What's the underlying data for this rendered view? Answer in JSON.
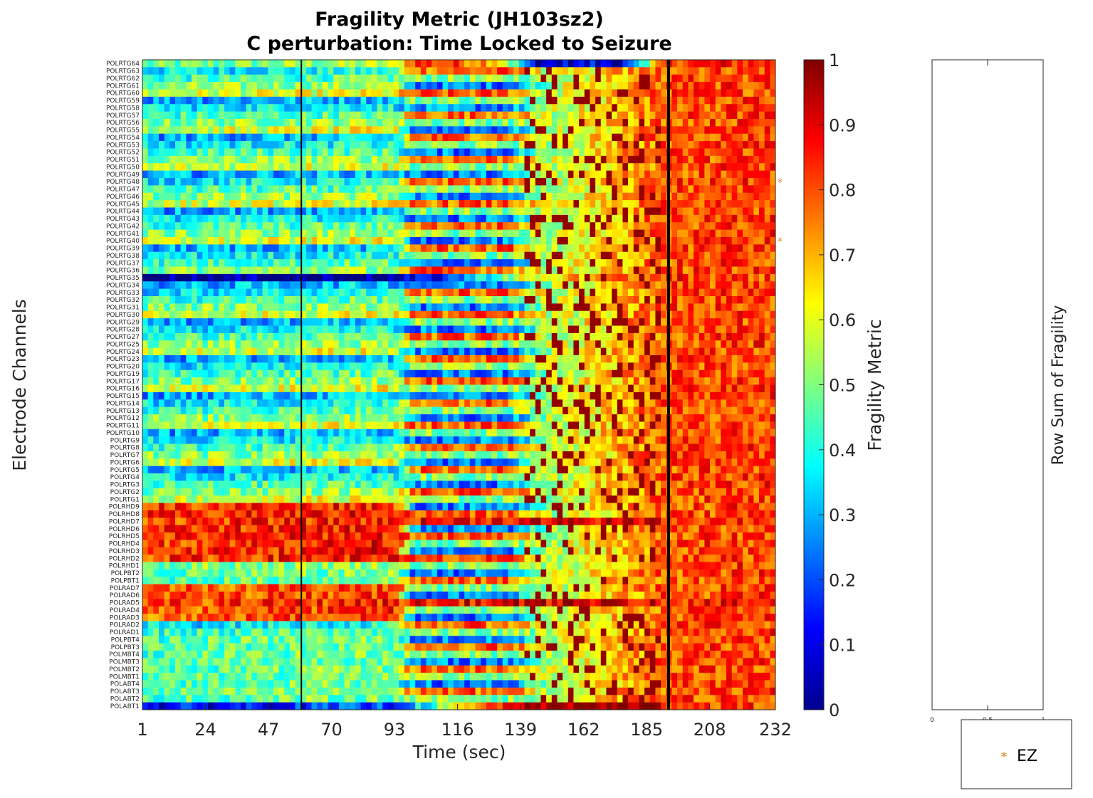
{
  "chart_data": [
    {
      "type": "heatmap",
      "title": "Fragility Metric (JH103sz2)",
      "subtitle": "C perturbation:  Time Locked to Seizure",
      "xlabel": "Time (sec)",
      "ylabel": "Electrode Channels",
      "x_ticks": [
        "1",
        "24",
        "47",
        "70",
        "93",
        "116",
        "139",
        "162",
        "185",
        "208",
        "232"
      ],
      "xlim": [
        1,
        232
      ],
      "channels": [
        "POLRTG64",
        "POLRTG63",
        "POLRTG62",
        "POLRTG61",
        "POLRTG60",
        "POLRTG59",
        "POLRTG58",
        "POLRTG57",
        "POLRTG56",
        "POLRTG55",
        "POLRTG54",
        "POLRTG53",
        "POLRTG52",
        "POLRTG51",
        "POLRTG50",
        "POLRTG49",
        "POLRTG48",
        "POLRTG47",
        "POLRTG46",
        "POLRTG45",
        "POLRTG44",
        "POLRTG43",
        "POLRTG42",
        "POLRTG41",
        "POLRTG40",
        "POLRTG39",
        "POLRTG38",
        "POLRTG37",
        "POLRTG36",
        "POLRTG35",
        "POLRTG34",
        "POLRTG33",
        "POLRTG32",
        "POLRTG31",
        "POLRTG30",
        "POLRTG29",
        "POLRTG28",
        "POLRTG27",
        "POLRTG25",
        "POLRTG24",
        "POLRTG23",
        "POLRTG20",
        "POLRTG19",
        "POLRTG17",
        "POLRTG16",
        "POLRTG15",
        "POLRTG14",
        "POLRTG13",
        "POLRTG12",
        "POLRTG11",
        "POLRTG10",
        "POLRTG9",
        "POLRTG8",
        "POLRTG7",
        "POLRTG6",
        "POLRTG5",
        "POLRTG4",
        "POLRTG3",
        "POLRTG2",
        "POLRTG1",
        "POLRHD9",
        "POLRHD8",
        "POLRHD7",
        "POLRHD6",
        "POLRHD5",
        "POLRHD4",
        "POLRHD3",
        "POLRHD2",
        "POLRHD1",
        "POLPBT2",
        "POLPBT1",
        "POLRAD7",
        "POLRAD6",
        "POLRAD5",
        "POLRAD4",
        "POLRAD3",
        "POLRAD2",
        "POLRAD1",
        "POLPBT4",
        "POLPBT3",
        "POLMBT4",
        "POLMBT3",
        "POLMBT2",
        "POLMBT1",
        "POLABT4",
        "POLABT3",
        "POLABT2",
        "POLABT1"
      ],
      "ez_channels": [
        "POLRTG48",
        "POLRTG40"
      ],
      "ez_color": "#d98a1a",
      "vertical_markers_sec": [
        59,
        193
      ],
      "colorbar": {
        "label": "Fragility Metric",
        "range": [
          0,
          1
        ],
        "ticks": [
          "0",
          "0.1",
          "0.2",
          "0.3",
          "0.4",
          "0.5",
          "0.6",
          "0.7",
          "0.8",
          "0.9",
          "1"
        ],
        "colormap": "jet"
      },
      "row_profiles": {
        "POLRTG64": [
          [
            1,
            0.45
          ],
          [
            93,
            0.55
          ],
          [
            100,
            0.85
          ],
          [
            130,
            0.75
          ],
          [
            145,
            0.08
          ],
          [
            175,
            0.1
          ],
          [
            193,
            0.85
          ],
          [
            232,
            0.85
          ]
        ],
        "POLRTG35": [
          [
            1,
            0.02
          ],
          [
            93,
            0.02
          ],
          [
            110,
            0.15
          ],
          [
            140,
            0.6
          ],
          [
            193,
            0.85
          ],
          [
            232,
            0.8
          ]
        ],
        "POLRHD7": [
          [
            1,
            0.82
          ],
          [
            93,
            0.85
          ],
          [
            110,
            0.88
          ],
          [
            185,
            0.9
          ],
          [
            193,
            0.85
          ],
          [
            232,
            0.85
          ]
        ],
        "POLRAD5": [
          [
            1,
            0.8
          ],
          [
            93,
            0.85
          ],
          [
            140,
            0.9
          ],
          [
            185,
            0.92
          ],
          [
            193,
            0.85
          ],
          [
            232,
            0.85
          ]
        ],
        "POLABT1": [
          [
            1,
            0.1
          ],
          [
            93,
            0.2
          ],
          [
            140,
            0.98
          ],
          [
            185,
            0.98
          ],
          [
            193,
            0.85
          ],
          [
            232,
            0.8
          ]
        ]
      }
    },
    {
      "type": "bar",
      "ylabel": "Row Sum of Fragility",
      "x_ticks": [
        "0",
        "0.5",
        "1"
      ],
      "xlim": [
        0,
        1
      ],
      "legend": {
        "marker": "*",
        "label": "EZ",
        "position": "below"
      }
    }
  ]
}
